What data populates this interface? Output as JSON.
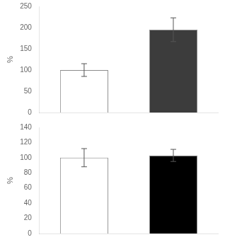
{
  "chart_data": [
    {
      "type": "bar",
      "categories": [
        null,
        null
      ],
      "values": [
        100,
        195
      ],
      "errors": [
        15,
        28
      ],
      "colors": [
        "#ffffff",
        "#3c3c3c"
      ],
      "ylabel": "%",
      "ylim": [
        0,
        250
      ],
      "yticks": [
        0,
        50,
        100,
        150,
        200,
        250
      ],
      "grid": false,
      "tick_labels": "y"
    },
    {
      "type": "bar",
      "categories": [
        null,
        null
      ],
      "values": [
        100,
        103
      ],
      "errors": [
        12,
        8
      ],
      "colors": [
        "#ffffff",
        "#000000"
      ],
      "ylabel": "%",
      "ylim": [
        0,
        140
      ],
      "yticks": [
        0,
        20,
        40,
        60,
        80,
        100,
        120,
        140
      ],
      "grid": false,
      "tick_labels": "y"
    }
  ]
}
